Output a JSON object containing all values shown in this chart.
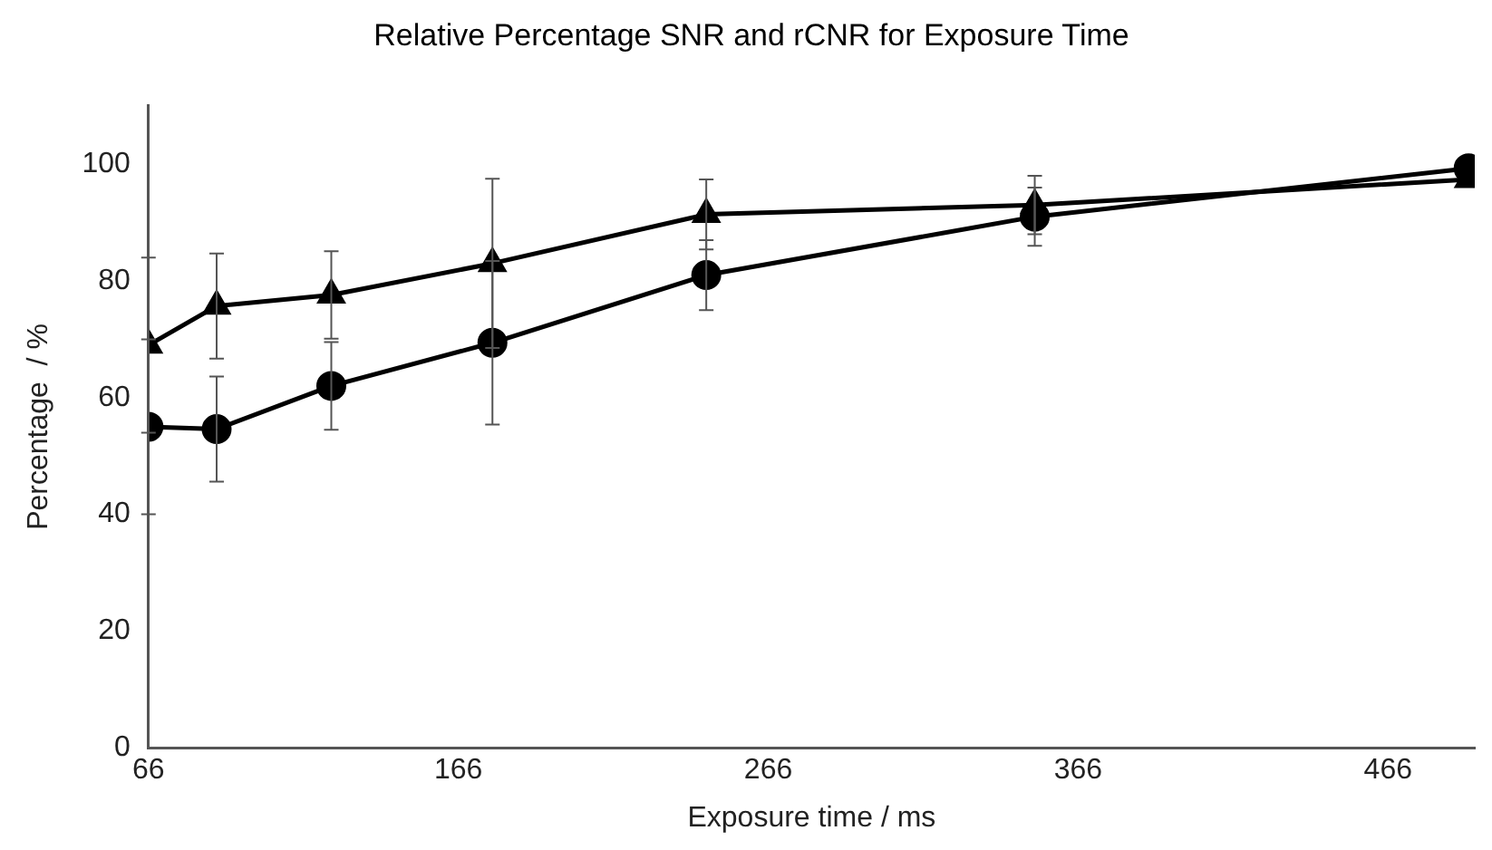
{
  "chart_data": {
    "type": "line",
    "title": "Relative Percentage SNR and rCNR for Exposure Time",
    "xlabel": "Exposure time / ms",
    "ylabel": "Percentage  / %",
    "x": [
      66,
      88,
      125,
      177,
      246,
      352,
      492
    ],
    "series": [
      {
        "color": "#000000",
        "marker": "circle",
        "values": [
          55,
          54.6,
          62,
          69.4,
          81,
          91,
          99.3
        ],
        "errors": [
          15,
          9,
          7.5,
          14,
          6,
          5,
          null
        ]
      },
      {
        "color": "#000000",
        "marker": "triangle",
        "values": [
          69,
          75.7,
          77.6,
          83,
          91.4,
          93,
          97.4
        ],
        "errors": [
          15,
          9,
          7.5,
          14.5,
          6,
          5,
          null
        ]
      }
    ],
    "xlim": [
      66,
      494
    ],
    "xticks": [
      66,
      166,
      266,
      366,
      466
    ],
    "ylim": [
      0,
      110
    ],
    "yticks": [
      0,
      20,
      40,
      60,
      80,
      100
    ],
    "grid": false,
    "legend": false,
    "line_style": "solid"
  }
}
